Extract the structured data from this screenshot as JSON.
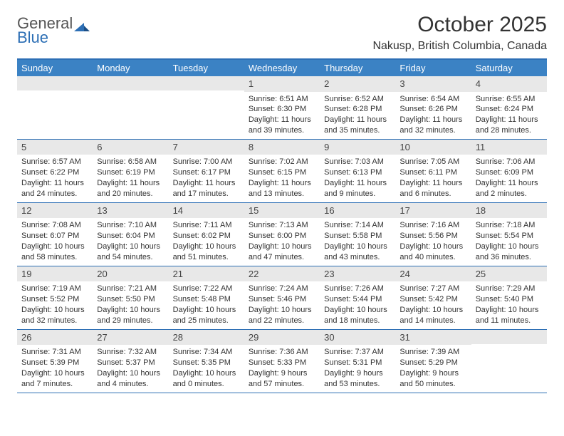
{
  "logo": {
    "line1": "General",
    "line2": "Blue"
  },
  "title": "October 2025",
  "location": "Nakusp, British Columbia, Canada",
  "colors": {
    "header_bg": "#3b82c4",
    "header_text": "#ffffff",
    "border": "#2d6fb5",
    "daynum_bg": "#e8e8e8",
    "body_text": "#333333",
    "logo_gray": "#555555",
    "logo_blue": "#2d6fb5",
    "page_bg": "#ffffff"
  },
  "typography": {
    "title_fontsize": 30,
    "location_fontsize": 16,
    "dayheader_fontsize": 13,
    "daynum_fontsize": 13,
    "cell_fontsize": 11,
    "font_family": "Arial"
  },
  "layout": {
    "columns": 7,
    "rows": 5,
    "aspect_ratio": "792:612"
  },
  "day_names": [
    "Sunday",
    "Monday",
    "Tuesday",
    "Wednesday",
    "Thursday",
    "Friday",
    "Saturday"
  ],
  "weeks": [
    [
      {
        "day": "",
        "sunrise": "",
        "sunset": "",
        "daylight": ""
      },
      {
        "day": "",
        "sunrise": "",
        "sunset": "",
        "daylight": ""
      },
      {
        "day": "",
        "sunrise": "",
        "sunset": "",
        "daylight": ""
      },
      {
        "day": "1",
        "sunrise": "Sunrise: 6:51 AM",
        "sunset": "Sunset: 6:30 PM",
        "daylight": "Daylight: 11 hours and 39 minutes."
      },
      {
        "day": "2",
        "sunrise": "Sunrise: 6:52 AM",
        "sunset": "Sunset: 6:28 PM",
        "daylight": "Daylight: 11 hours and 35 minutes."
      },
      {
        "day": "3",
        "sunrise": "Sunrise: 6:54 AM",
        "sunset": "Sunset: 6:26 PM",
        "daylight": "Daylight: 11 hours and 32 minutes."
      },
      {
        "day": "4",
        "sunrise": "Sunrise: 6:55 AM",
        "sunset": "Sunset: 6:24 PM",
        "daylight": "Daylight: 11 hours and 28 minutes."
      }
    ],
    [
      {
        "day": "5",
        "sunrise": "Sunrise: 6:57 AM",
        "sunset": "Sunset: 6:22 PM",
        "daylight": "Daylight: 11 hours and 24 minutes."
      },
      {
        "day": "6",
        "sunrise": "Sunrise: 6:58 AM",
        "sunset": "Sunset: 6:19 PM",
        "daylight": "Daylight: 11 hours and 20 minutes."
      },
      {
        "day": "7",
        "sunrise": "Sunrise: 7:00 AM",
        "sunset": "Sunset: 6:17 PM",
        "daylight": "Daylight: 11 hours and 17 minutes."
      },
      {
        "day": "8",
        "sunrise": "Sunrise: 7:02 AM",
        "sunset": "Sunset: 6:15 PM",
        "daylight": "Daylight: 11 hours and 13 minutes."
      },
      {
        "day": "9",
        "sunrise": "Sunrise: 7:03 AM",
        "sunset": "Sunset: 6:13 PM",
        "daylight": "Daylight: 11 hours and 9 minutes."
      },
      {
        "day": "10",
        "sunrise": "Sunrise: 7:05 AM",
        "sunset": "Sunset: 6:11 PM",
        "daylight": "Daylight: 11 hours and 6 minutes."
      },
      {
        "day": "11",
        "sunrise": "Sunrise: 7:06 AM",
        "sunset": "Sunset: 6:09 PM",
        "daylight": "Daylight: 11 hours and 2 minutes."
      }
    ],
    [
      {
        "day": "12",
        "sunrise": "Sunrise: 7:08 AM",
        "sunset": "Sunset: 6:07 PM",
        "daylight": "Daylight: 10 hours and 58 minutes."
      },
      {
        "day": "13",
        "sunrise": "Sunrise: 7:10 AM",
        "sunset": "Sunset: 6:04 PM",
        "daylight": "Daylight: 10 hours and 54 minutes."
      },
      {
        "day": "14",
        "sunrise": "Sunrise: 7:11 AM",
        "sunset": "Sunset: 6:02 PM",
        "daylight": "Daylight: 10 hours and 51 minutes."
      },
      {
        "day": "15",
        "sunrise": "Sunrise: 7:13 AM",
        "sunset": "Sunset: 6:00 PM",
        "daylight": "Daylight: 10 hours and 47 minutes."
      },
      {
        "day": "16",
        "sunrise": "Sunrise: 7:14 AM",
        "sunset": "Sunset: 5:58 PM",
        "daylight": "Daylight: 10 hours and 43 minutes."
      },
      {
        "day": "17",
        "sunrise": "Sunrise: 7:16 AM",
        "sunset": "Sunset: 5:56 PM",
        "daylight": "Daylight: 10 hours and 40 minutes."
      },
      {
        "day": "18",
        "sunrise": "Sunrise: 7:18 AM",
        "sunset": "Sunset: 5:54 PM",
        "daylight": "Daylight: 10 hours and 36 minutes."
      }
    ],
    [
      {
        "day": "19",
        "sunrise": "Sunrise: 7:19 AM",
        "sunset": "Sunset: 5:52 PM",
        "daylight": "Daylight: 10 hours and 32 minutes."
      },
      {
        "day": "20",
        "sunrise": "Sunrise: 7:21 AM",
        "sunset": "Sunset: 5:50 PM",
        "daylight": "Daylight: 10 hours and 29 minutes."
      },
      {
        "day": "21",
        "sunrise": "Sunrise: 7:22 AM",
        "sunset": "Sunset: 5:48 PM",
        "daylight": "Daylight: 10 hours and 25 minutes."
      },
      {
        "day": "22",
        "sunrise": "Sunrise: 7:24 AM",
        "sunset": "Sunset: 5:46 PM",
        "daylight": "Daylight: 10 hours and 22 minutes."
      },
      {
        "day": "23",
        "sunrise": "Sunrise: 7:26 AM",
        "sunset": "Sunset: 5:44 PM",
        "daylight": "Daylight: 10 hours and 18 minutes."
      },
      {
        "day": "24",
        "sunrise": "Sunrise: 7:27 AM",
        "sunset": "Sunset: 5:42 PM",
        "daylight": "Daylight: 10 hours and 14 minutes."
      },
      {
        "day": "25",
        "sunrise": "Sunrise: 7:29 AM",
        "sunset": "Sunset: 5:40 PM",
        "daylight": "Daylight: 10 hours and 11 minutes."
      }
    ],
    [
      {
        "day": "26",
        "sunrise": "Sunrise: 7:31 AM",
        "sunset": "Sunset: 5:39 PM",
        "daylight": "Daylight: 10 hours and 7 minutes."
      },
      {
        "day": "27",
        "sunrise": "Sunrise: 7:32 AM",
        "sunset": "Sunset: 5:37 PM",
        "daylight": "Daylight: 10 hours and 4 minutes."
      },
      {
        "day": "28",
        "sunrise": "Sunrise: 7:34 AM",
        "sunset": "Sunset: 5:35 PM",
        "daylight": "Daylight: 10 hours and 0 minutes."
      },
      {
        "day": "29",
        "sunrise": "Sunrise: 7:36 AM",
        "sunset": "Sunset: 5:33 PM",
        "daylight": "Daylight: 9 hours and 57 minutes."
      },
      {
        "day": "30",
        "sunrise": "Sunrise: 7:37 AM",
        "sunset": "Sunset: 5:31 PM",
        "daylight": "Daylight: 9 hours and 53 minutes."
      },
      {
        "day": "31",
        "sunrise": "Sunrise: 7:39 AM",
        "sunset": "Sunset: 5:29 PM",
        "daylight": "Daylight: 9 hours and 50 minutes."
      },
      {
        "day": "",
        "sunrise": "",
        "sunset": "",
        "daylight": ""
      }
    ]
  ]
}
